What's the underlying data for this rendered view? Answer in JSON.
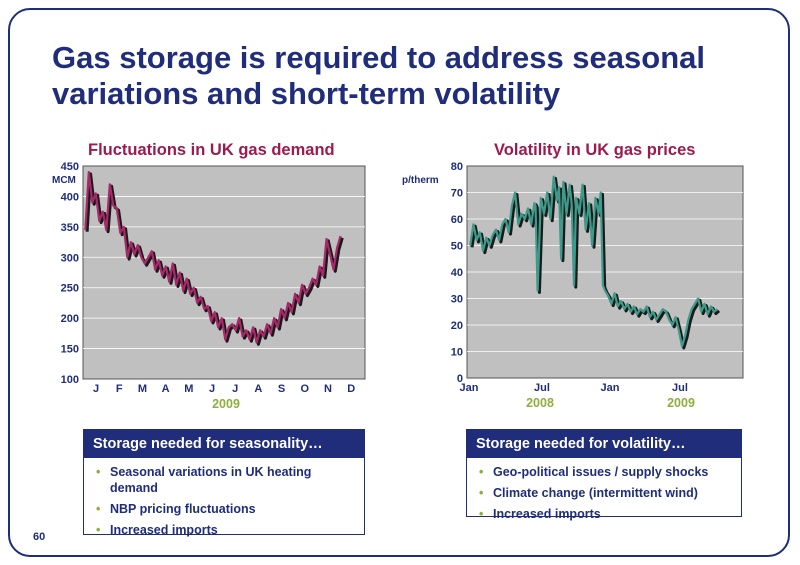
{
  "slide": {
    "title": "Gas storage is required to address seasonal variations and short-term volatility",
    "page_number": "60"
  },
  "chart_data": [
    {
      "type": "line",
      "title": "Fluctuations in UK gas demand",
      "ylabel": "MCM",
      "ylim": [
        100,
        450
      ],
      "yticks": [
        100,
        150,
        200,
        250,
        300,
        350,
        400,
        450
      ],
      "categories": [
        "J",
        "F",
        "M",
        "A",
        "M",
        "J",
        "J",
        "A",
        "S",
        "O",
        "N",
        "D"
      ],
      "year_label": "2009",
      "grid": true,
      "series": [
        {
          "color": "#a8296a",
          "x": [
            0.1,
            0.25,
            0.4,
            0.55,
            0.7,
            0.85,
            1.0,
            1.15,
            1.3,
            1.45,
            1.6,
            1.75,
            1.9,
            2.05,
            2.2,
            2.35,
            2.5,
            2.65,
            2.8,
            2.95,
            3.1,
            3.25,
            3.4,
            3.55,
            3.7,
            3.85,
            4.0,
            4.15,
            4.3,
            4.45,
            4.6,
            4.75,
            4.9,
            5.05,
            5.2,
            5.35,
            5.5,
            5.65,
            5.8,
            5.95,
            6.1,
            6.25,
            6.4,
            6.55,
            6.7,
            6.85,
            7.0,
            7.15,
            7.3,
            7.45,
            7.6,
            7.75,
            7.9,
            8.05,
            8.2,
            8.35,
            8.5,
            8.65,
            8.8,
            8.95,
            9.1,
            9.25,
            9.4,
            9.55,
            9.7,
            9.85,
            10.0,
            10.15,
            10.3,
            10.45,
            10.6,
            10.75,
            10.9,
            11.05
          ],
          "values": [
            345,
            440,
            390,
            405,
            360,
            375,
            345,
            420,
            385,
            380,
            340,
            350,
            300,
            325,
            305,
            320,
            300,
            290,
            300,
            310,
            280,
            295,
            270,
            285,
            260,
            290,
            255,
            275,
            245,
            265,
            240,
            250,
            225,
            235,
            215,
            220,
            195,
            210,
            185,
            200,
            165,
            185,
            190,
            180,
            200,
            170,
            180,
            165,
            185,
            160,
            180,
            170,
            190,
            175,
            200,
            185,
            215,
            200,
            225,
            210,
            240,
            225,
            255,
            240,
            250,
            265,
            255,
            285,
            270,
            330,
            305,
            280,
            315,
            335
          ]
        }
      ]
    },
    {
      "type": "line",
      "title": "Volatility in UK gas prices",
      "ylabel": "p/therm",
      "ylim": [
        0,
        80
      ],
      "yticks": [
        0,
        10,
        20,
        30,
        40,
        50,
        60,
        70,
        80
      ],
      "categories": [
        "Jan",
        "Jul",
        "Jan",
        "Jul"
      ],
      "year_labels": [
        "2008",
        "2009"
      ],
      "grid": true,
      "series": [
        {
          "color": "#3e9a8a",
          "x": [
            0,
            0.3,
            0.6,
            0.9,
            1.2,
            1.5,
            1.8,
            2.1,
            2.4,
            2.7,
            3.0,
            3.3,
            3.6,
            3.9,
            4.2,
            4.5,
            4.8,
            5.1,
            5.4,
            5.7,
            6.0,
            6.1,
            6.3,
            6.6,
            6.9,
            7.2,
            7.5,
            7.8,
            8.1,
            8.3,
            8.5,
            8.7,
            9.0,
            9.3,
            9.5,
            9.7,
            9.9,
            10.2,
            10.5,
            10.8,
            11.1,
            11.4,
            11.7,
            12.0,
            12.2,
            12.4,
            12.6,
            12.9,
            13.2,
            13.5,
            13.8,
            14.1,
            14.4,
            14.7,
            15.0,
            15.3,
            15.6,
            15.9,
            16.2,
            16.5,
            16.8,
            17.1,
            17.4,
            17.7,
            18.0,
            18.3,
            18.6,
            18.9,
            19.2,
            19.5,
            19.8,
            20.1,
            20.4,
            20.7,
            21.0,
            21.3,
            21.6,
            21.9,
            22.2,
            22.5,
            22.8,
            23.1
          ],
          "values": [
            50,
            58,
            52,
            55,
            48,
            53,
            50,
            54,
            56,
            52,
            58,
            60,
            55,
            65,
            70,
            58,
            62,
            60,
            64,
            58,
            66,
            65,
            33,
            68,
            62,
            70,
            60,
            76,
            67,
            72,
            45,
            74,
            62,
            73,
            65,
            35,
            68,
            62,
            73,
            56,
            66,
            50,
            68,
            62,
            70,
            35,
            33,
            31,
            28,
            32,
            27,
            29,
            26,
            28,
            25,
            27,
            24,
            26,
            25,
            27,
            23,
            25,
            22,
            24,
            26,
            25,
            22,
            20,
            23,
            18,
            12,
            16,
            22,
            26,
            28,
            30,
            25,
            28,
            24,
            27,
            25,
            26
          ]
        }
      ]
    }
  ],
  "boxes": [
    {
      "header": "Storage needed for seasonality…",
      "items": [
        "Seasonal variations in UK heating demand",
        "NBP pricing fluctuations",
        "Increased imports"
      ]
    },
    {
      "header": "Storage needed for volatility…",
      "items": [
        "Geo-political issues / supply shocks",
        "Climate change (intermittent wind)",
        "Increased imports"
      ]
    }
  ]
}
